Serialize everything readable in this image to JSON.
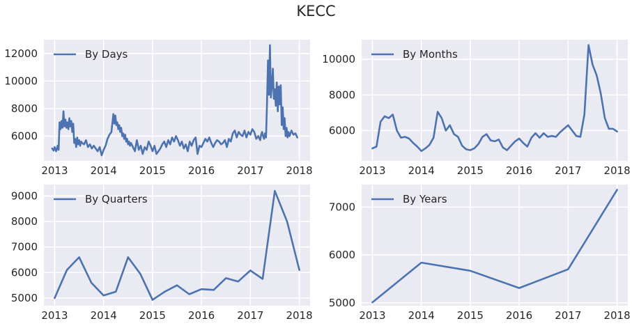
{
  "figure_title": "KECC",
  "colors": {
    "background": "#eaeaf2",
    "grid": "#ffffff",
    "line": "#4c72b0",
    "text": "#262626"
  },
  "chart_data": [
    {
      "type": "line",
      "legend": "By Days",
      "legend_position": "upper-left",
      "grid": true,
      "xlim": [
        2012.78,
        2018.22
      ],
      "ylim": [
        4200,
        13000
      ],
      "xticks": [
        2013,
        2014,
        2015,
        2016,
        2017,
        2018
      ],
      "yticks": [
        6000,
        8000,
        10000,
        12000
      ],
      "series": [
        {
          "x": [
            2012.95,
            2012.98,
            2013.0,
            2013.03,
            2013.06,
            2013.08,
            2013.1,
            2013.12,
            2013.14,
            2013.16,
            2013.18,
            2013.2,
            2013.22,
            2013.24,
            2013.26,
            2013.28,
            2013.3,
            2013.32,
            2013.34,
            2013.36,
            2013.38,
            2013.4,
            2013.42,
            2013.44,
            2013.46,
            2013.48,
            2013.5,
            2013.52,
            2013.54,
            2013.56,
            2013.6,
            2013.64,
            2013.68,
            2013.72,
            2013.76,
            2013.8,
            2013.84,
            2013.88,
            2013.92,
            2013.96,
            2014.0,
            2014.04,
            2014.08,
            2014.12,
            2014.16,
            2014.2,
            2014.22,
            2014.24,
            2014.26,
            2014.28,
            2014.3,
            2014.32,
            2014.34,
            2014.36,
            2014.38,
            2014.4,
            2014.42,
            2014.44,
            2014.46,
            2014.48,
            2014.5,
            2014.52,
            2014.54,
            2014.56,
            2014.6,
            2014.64,
            2014.68,
            2014.72,
            2014.76,
            2014.8,
            2014.84,
            2014.88,
            2014.92,
            2014.96,
            2015.0,
            2015.04,
            2015.08,
            2015.12,
            2015.16,
            2015.2,
            2015.24,
            2015.28,
            2015.32,
            2015.36,
            2015.4,
            2015.44,
            2015.48,
            2015.52,
            2015.56,
            2015.6,
            2015.64,
            2015.68,
            2015.72,
            2015.76,
            2015.8,
            2015.84,
            2015.88,
            2015.92,
            2015.96,
            2016.0,
            2016.04,
            2016.08,
            2016.12,
            2016.16,
            2016.2,
            2016.24,
            2016.28,
            2016.32,
            2016.36,
            2016.4,
            2016.44,
            2016.48,
            2016.52,
            2016.56,
            2016.6,
            2016.64,
            2016.68,
            2016.72,
            2016.76,
            2016.8,
            2016.84,
            2016.88,
            2016.92,
            2016.96,
            2017.0,
            2017.04,
            2017.08,
            2017.12,
            2017.16,
            2017.2,
            2017.22,
            2017.24,
            2017.26,
            2017.28,
            2017.3,
            2017.32,
            2017.34,
            2017.36,
            2017.38,
            2017.4,
            2017.42,
            2017.44,
            2017.46,
            2017.48,
            2017.5,
            2017.52,
            2017.54,
            2017.56,
            2017.58,
            2017.6,
            2017.62,
            2017.64,
            2017.66,
            2017.68,
            2017.7,
            2017.72,
            2017.74,
            2017.76,
            2017.78,
            2017.8,
            2017.84,
            2017.88,
            2017.92,
            2017.96
          ],
          "y": [
            5100,
            4950,
            5200,
            4900,
            5300,
            5000,
            7000,
            6500,
            7100,
            6600,
            7800,
            6700,
            7200,
            6600,
            7000,
            6500,
            7300,
            6700,
            7100,
            6300,
            6900,
            5500,
            5800,
            5200,
            5900,
            5400,
            5700,
            5300,
            5600,
            5500,
            5400,
            5700,
            5200,
            5400,
            5100,
            5300,
            5100,
            4900,
            5200,
            4600,
            5000,
            5300,
            5800,
            6100,
            6300,
            7600,
            6900,
            7500,
            6800,
            7000,
            6500,
            6800,
            6300,
            6600,
            6000,
            6200,
            5800,
            6100,
            5600,
            5800,
            5400,
            5600,
            5300,
            5500,
            5200,
            4900,
            5700,
            5000,
            5300,
            4700,
            5200,
            5000,
            5600,
            5300,
            4900,
            5300,
            4700,
            4900,
            5100,
            5400,
            5600,
            5200,
            5700,
            5400,
            5900,
            5600,
            6000,
            5700,
            5300,
            5600,
            5100,
            5400,
            4900,
            5600,
            5300,
            5700,
            5900,
            4700,
            5300,
            5200,
            5500,
            5800,
            5600,
            5900,
            5500,
            5200,
            5500,
            5700,
            5600,
            5400,
            5500,
            5700,
            5200,
            5800,
            5600,
            6200,
            6400,
            5900,
            6300,
            6100,
            6000,
            6400,
            5900,
            6300,
            6100,
            6500,
            6300,
            5800,
            6000,
            5700,
            6100,
            6300,
            6000,
            5800,
            6200,
            5900,
            8400,
            11500,
            9000,
            12600,
            8800,
            9700,
            10900,
            8700,
            9400,
            8200,
            9900,
            7800,
            9600,
            8300,
            9700,
            6800,
            8100,
            6500,
            7300,
            6000,
            6600,
            5900,
            6300,
            6000,
            6400,
            6100,
            6200,
            5900
          ]
        }
      ]
    },
    {
      "type": "line",
      "legend": "By Months",
      "legend_position": "upper-left",
      "grid": true,
      "xlim": [
        2012.78,
        2018.22
      ],
      "ylim": [
        4300,
        11100
      ],
      "xticks": [
        2013,
        2014,
        2015,
        2016,
        2017,
        2018
      ],
      "yticks": [
        6000,
        8000,
        10000
      ],
      "series": [
        {
          "x": [
            2013.0,
            2013.0833,
            2013.1667,
            2013.25,
            2013.3333,
            2013.4167,
            2013.5,
            2013.5833,
            2013.6667,
            2013.75,
            2013.8333,
            2013.9167,
            2014.0,
            2014.0833,
            2014.1667,
            2014.25,
            2014.3333,
            2014.4167,
            2014.5,
            2014.5833,
            2014.6667,
            2014.75,
            2014.8333,
            2014.9167,
            2015.0,
            2015.0833,
            2015.1667,
            2015.25,
            2015.3333,
            2015.4167,
            2015.5,
            2015.5833,
            2015.6667,
            2015.75,
            2015.8333,
            2015.9167,
            2016.0,
            2016.0833,
            2016.1667,
            2016.25,
            2016.3333,
            2016.4167,
            2016.5,
            2016.5833,
            2016.6667,
            2016.75,
            2016.8333,
            2016.9167,
            2017.0,
            2017.0833,
            2017.1667,
            2017.25,
            2017.3333,
            2017.4167,
            2017.5,
            2017.5833,
            2017.6667,
            2017.75,
            2017.8333,
            2017.9167,
            2018.0
          ],
          "y": [
            5000,
            5100,
            6500,
            6800,
            6700,
            6900,
            6000,
            5600,
            5650,
            5550,
            5300,
            5100,
            4850,
            5000,
            5200,
            5600,
            7050,
            6700,
            6000,
            6300,
            5800,
            5650,
            5150,
            4950,
            4900,
            5000,
            5250,
            5650,
            5800,
            5450,
            5400,
            5500,
            5050,
            4900,
            5150,
            5400,
            5550,
            5300,
            5100,
            5600,
            5850,
            5600,
            5850,
            5650,
            5700,
            5650,
            5900,
            6100,
            6300,
            6000,
            5700,
            5650,
            6900,
            10800,
            9700,
            9100,
            8100,
            6700,
            6100,
            6100,
            5950
          ]
        }
      ]
    },
    {
      "type": "line",
      "legend": "By Quarters",
      "legend_position": "upper-left",
      "grid": true,
      "xlim": [
        2012.78,
        2018.22
      ],
      "ylim": [
        4700,
        9450
      ],
      "xticks": [
        2013,
        2014,
        2015,
        2016,
        2017,
        2018
      ],
      "yticks": [
        5000,
        6000,
        7000,
        8000,
        9000
      ],
      "series": [
        {
          "x": [
            2013.0,
            2013.25,
            2013.5,
            2013.75,
            2014.0,
            2014.25,
            2014.5,
            2014.75,
            2015.0,
            2015.25,
            2015.5,
            2015.75,
            2016.0,
            2016.25,
            2016.5,
            2016.75,
            2017.0,
            2017.25,
            2017.5,
            2017.75,
            2018.0
          ],
          "y": [
            5000,
            6100,
            6600,
            5600,
            5100,
            5250,
            6600,
            5950,
            4930,
            5250,
            5500,
            5150,
            5350,
            5320,
            5780,
            5650,
            6080,
            5750,
            9200,
            8000,
            6100
          ]
        }
      ]
    },
    {
      "type": "line",
      "legend": "By Years",
      "legend_position": "upper-left",
      "grid": true,
      "xlim": [
        2012.78,
        2018.22
      ],
      "ylim": [
        4940,
        7470
      ],
      "xticks": [
        2013,
        2014,
        2015,
        2016,
        2017,
        2018
      ],
      "yticks": [
        5000,
        6000,
        7000
      ],
      "series": [
        {
          "x": [
            2013,
            2014,
            2015,
            2016,
            2017,
            2018
          ],
          "y": [
            5010,
            5840,
            5670,
            5310,
            5700,
            7360
          ]
        }
      ]
    }
  ]
}
